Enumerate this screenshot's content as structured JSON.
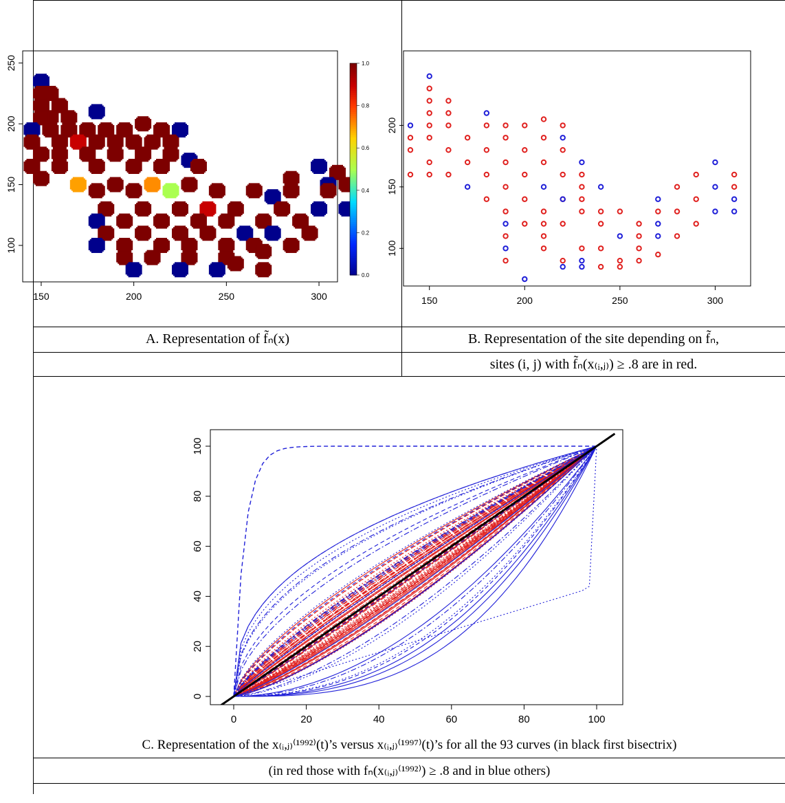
{
  "captions": {
    "a": "A. Representation of f̃ₙ(x)",
    "b_line1": "B. Representation of the site depending on f̃ₙ,",
    "b_line2": "sites (i, j) with f̃ₙ(x₍ᵢ,ⱼ₎) ≥ .8 are in red.",
    "c_line1": "C. Representation of the x₍ᵢ,ⱼ₎⁽¹⁹⁹²⁾(t)’s versus x₍ᵢ,ⱼ₎⁽¹⁹⁹⁷⁾(t)’s for all the 93 curves (in black first bisectrix)",
    "c_line2": "(in red those with fₙ(x₍ᵢ,ⱼ₎⁽¹⁹⁹²⁾) ≥ .8 and in blue others)"
  },
  "colors": {
    "red": "#e0201e",
    "blue": "#1f1fd8",
    "dark_red": "#7a0000",
    "navy": "#00109a"
  },
  "chart_data": [
    {
      "type": "heatmap",
      "xlim": [
        140,
        310
      ],
      "ylim": [
        70,
        260
      ],
      "x_ticks": [
        150,
        200,
        250,
        300
      ],
      "y_ticks": [
        100,
        150,
        200,
        250
      ],
      "colorbar": {
        "min": 0,
        "max": 1,
        "ticks": [
          "0.0",
          "0.2",
          "0.4",
          "0.6",
          "0.8",
          "1.0"
        ]
      },
      "cells": [
        [
          150,
          235,
          0
        ],
        [
          150,
          225,
          1
        ],
        [
          155,
          225,
          1
        ],
        [
          150,
          215,
          1
        ],
        [
          160,
          215,
          1
        ],
        [
          155,
          205,
          1
        ],
        [
          165,
          205,
          1
        ],
        [
          150,
          205,
          1
        ],
        [
          180,
          210,
          0
        ],
        [
          145,
          195,
          0
        ],
        [
          155,
          195,
          1
        ],
        [
          165,
          195,
          1
        ],
        [
          175,
          195,
          1
        ],
        [
          185,
          195,
          1
        ],
        [
          195,
          195,
          1
        ],
        [
          205,
          200,
          1
        ],
        [
          215,
          195,
          1
        ],
        [
          225,
          195,
          0
        ],
        [
          145,
          185,
          1
        ],
        [
          160,
          185,
          1
        ],
        [
          170,
          185,
          0.9
        ],
        [
          180,
          185,
          1
        ],
        [
          190,
          185,
          1
        ],
        [
          200,
          185,
          1
        ],
        [
          210,
          185,
          1
        ],
        [
          220,
          185,
          1
        ],
        [
          150,
          175,
          1
        ],
        [
          160,
          175,
          1
        ],
        [
          175,
          175,
          1
        ],
        [
          190,
          175,
          1
        ],
        [
          205,
          175,
          1
        ],
        [
          220,
          175,
          1
        ],
        [
          230,
          170,
          0
        ],
        [
          145,
          165,
          1
        ],
        [
          160,
          165,
          1
        ],
        [
          180,
          165,
          1
        ],
        [
          200,
          165,
          1
        ],
        [
          215,
          165,
          1
        ],
        [
          235,
          165,
          1
        ],
        [
          300,
          165,
          0
        ],
        [
          310,
          160,
          1
        ],
        [
          150,
          155,
          1
        ],
        [
          170,
          150,
          0.7
        ],
        [
          190,
          150,
          1
        ],
        [
          210,
          150,
          0.72
        ],
        [
          230,
          150,
          1
        ],
        [
          245,
          145,
          1
        ],
        [
          285,
          155,
          1
        ],
        [
          305,
          150,
          0
        ],
        [
          315,
          150,
          1
        ],
        [
          180,
          145,
          1
        ],
        [
          200,
          145,
          1
        ],
        [
          220,
          145,
          0.5
        ],
        [
          265,
          145,
          1
        ],
        [
          285,
          145,
          1
        ],
        [
          305,
          145,
          1
        ],
        [
          275,
          140,
          0
        ],
        [
          185,
          130,
          1
        ],
        [
          205,
          130,
          1
        ],
        [
          225,
          130,
          1
        ],
        [
          240,
          130,
          0.9
        ],
        [
          255,
          130,
          1
        ],
        [
          280,
          130,
          1
        ],
        [
          300,
          130,
          0
        ],
        [
          315,
          130,
          0
        ],
        [
          180,
          120,
          0
        ],
        [
          195,
          120,
          1
        ],
        [
          215,
          120,
          1
        ],
        [
          235,
          120,
          1
        ],
        [
          250,
          120,
          1
        ],
        [
          270,
          120,
          1
        ],
        [
          290,
          120,
          1
        ],
        [
          185,
          110,
          1
        ],
        [
          205,
          110,
          1
        ],
        [
          225,
          110,
          1
        ],
        [
          240,
          110,
          1
        ],
        [
          260,
          110,
          0
        ],
        [
          275,
          110,
          0
        ],
        [
          295,
          110,
          1
        ],
        [
          180,
          100,
          0
        ],
        [
          195,
          100,
          1
        ],
        [
          215,
          100,
          1
        ],
        [
          230,
          100,
          1
        ],
        [
          250,
          100,
          1
        ],
        [
          265,
          100,
          1
        ],
        [
          285,
          100,
          1
        ],
        [
          195,
          90,
          1
        ],
        [
          210,
          90,
          1
        ],
        [
          230,
          90,
          1
        ],
        [
          250,
          90,
          1
        ],
        [
          270,
          95,
          1
        ],
        [
          200,
          80,
          0
        ],
        [
          225,
          80,
          0
        ],
        [
          245,
          80,
          0
        ],
        [
          255,
          85,
          1
        ],
        [
          270,
          80,
          1
        ]
      ]
    },
    {
      "type": "scatter",
      "xlim": [
        140,
        315
      ],
      "ylim": [
        75,
        255
      ],
      "x_ticks": [
        150,
        200,
        250,
        300
      ],
      "y_ticks": [
        100,
        150,
        200
      ],
      "red_points": [
        [
          150,
          230
        ],
        [
          150,
          220
        ],
        [
          160,
          220
        ],
        [
          150,
          210
        ],
        [
          160,
          210
        ],
        [
          150,
          200
        ],
        [
          160,
          200
        ],
        [
          140,
          190
        ],
        [
          150,
          190
        ],
        [
          170,
          190
        ],
        [
          180,
          200
        ],
        [
          190,
          200
        ],
        [
          200,
          200
        ],
        [
          210,
          205
        ],
        [
          220,
          200
        ],
        [
          140,
          180
        ],
        [
          160,
          180
        ],
        [
          180,
          180
        ],
        [
          190,
          190
        ],
        [
          210,
          190
        ],
        [
          170,
          170
        ],
        [
          190,
          170
        ],
        [
          210,
          170
        ],
        [
          200,
          180
        ],
        [
          220,
          180
        ],
        [
          150,
          170
        ],
        [
          140,
          160
        ],
        [
          150,
          160
        ],
        [
          160,
          160
        ],
        [
          180,
          160
        ],
        [
          200,
          160
        ],
        [
          220,
          160
        ],
        [
          230,
          160
        ],
        [
          190,
          150
        ],
        [
          230,
          150
        ],
        [
          180,
          140
        ],
        [
          200,
          140
        ],
        [
          220,
          140
        ],
        [
          230,
          140
        ],
        [
          190,
          130
        ],
        [
          210,
          130
        ],
        [
          230,
          130
        ],
        [
          240,
          130
        ],
        [
          250,
          130
        ],
        [
          260,
          120
        ],
        [
          270,
          130
        ],
        [
          280,
          130
        ],
        [
          290,
          140
        ],
        [
          290,
          160
        ],
        [
          280,
          150
        ],
        [
          290,
          120
        ],
        [
          190,
          110
        ],
        [
          210,
          110
        ],
        [
          220,
          120
        ],
        [
          240,
          120
        ],
        [
          260,
          110
        ],
        [
          280,
          110
        ],
        [
          210,
          100
        ],
        [
          230,
          100
        ],
        [
          240,
          100
        ],
        [
          250,
          90
        ],
        [
          260,
          100
        ],
        [
          220,
          90
        ],
        [
          240,
          85
        ],
        [
          250,
          85
        ],
        [
          260,
          90
        ],
        [
          270,
          95
        ],
        [
          190,
          90
        ],
        [
          200,
          120
        ],
        [
          210,
          120
        ],
        [
          310,
          160
        ],
        [
          310,
          150
        ]
      ],
      "blue_points": [
        [
          150,
          240
        ],
        [
          140,
          200
        ],
        [
          180,
          210
        ],
        [
          220,
          190
        ],
        [
          230,
          170
        ],
        [
          170,
          150
        ],
        [
          210,
          150
        ],
        [
          220,
          140
        ],
        [
          240,
          150
        ],
        [
          270,
          140
        ],
        [
          270,
          120
        ],
        [
          270,
          110
        ],
        [
          190,
          120
        ],
        [
          190,
          100
        ],
        [
          250,
          110
        ],
        [
          300,
          170
        ],
        [
          300,
          150
        ],
        [
          300,
          130
        ],
        [
          310,
          140
        ],
        [
          310,
          130
        ],
        [
          220,
          85
        ],
        [
          230,
          90
        ],
        [
          230,
          85
        ],
        [
          200,
          75
        ]
      ]
    },
    {
      "type": "line",
      "xlim": [
        0,
        100
      ],
      "ylim": [
        0,
        100
      ],
      "x_ticks": [
        0,
        20,
        40,
        60,
        80,
        100
      ],
      "y_ticks": [
        0,
        20,
        40,
        60,
        80,
        100
      ],
      "series_count": 93
    }
  ]
}
